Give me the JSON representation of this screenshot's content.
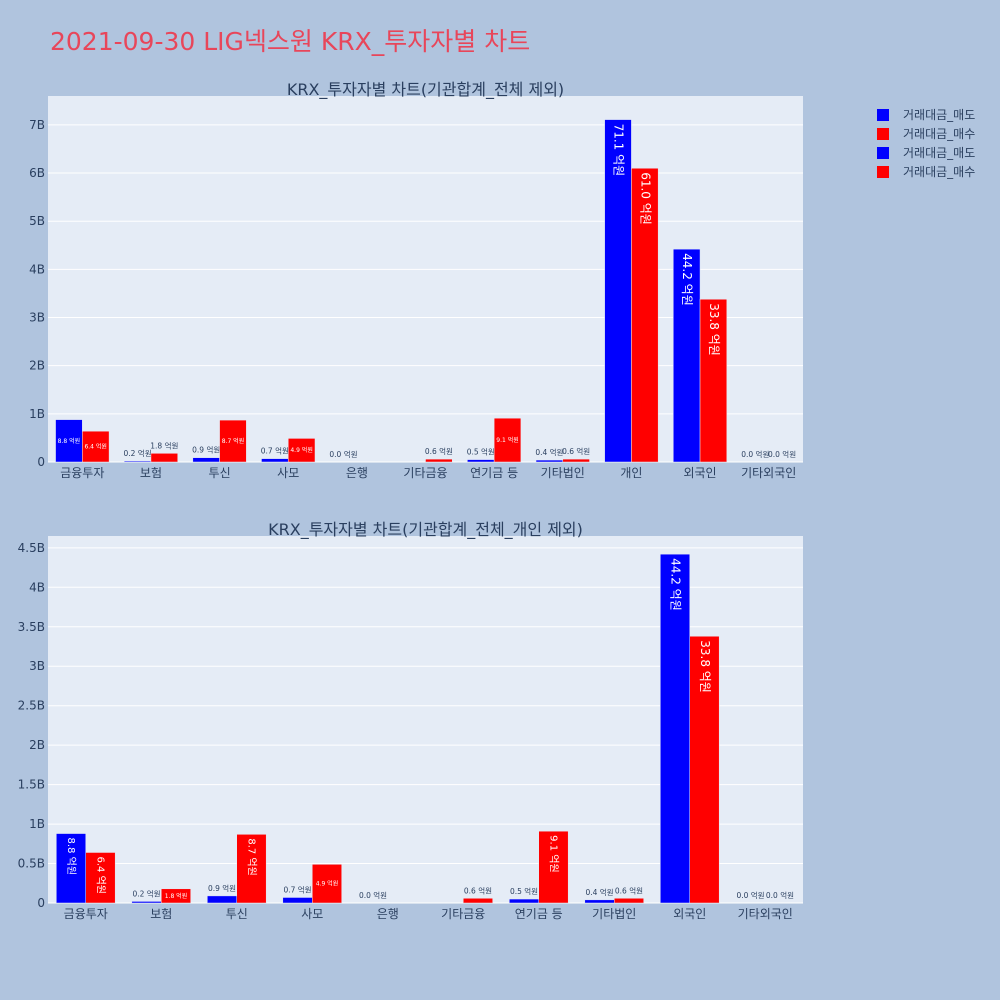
{
  "page": {
    "title": "2021-09-30 LIG넥스원 KRX_투자자별 차트"
  },
  "legend": [
    {
      "name": "거래대금_매도",
      "color": "#0000ff"
    },
    {
      "name": "거래대금_매수",
      "color": "#ff0000"
    },
    {
      "name": "거래대금_매도",
      "color": "#0000ff"
    },
    {
      "name": "거래대금_매수",
      "color": "#ff0000"
    }
  ],
  "chart_data": [
    {
      "type": "bar",
      "title": "KRX_투자자별 차트(기관합계_전체 제외)",
      "categories": [
        "금융투자",
        "보험",
        "투신",
        "사모",
        "은행",
        "기타금융",
        "연기금 등",
        "기타법인",
        "개인",
        "외국인",
        "기타외국인"
      ],
      "ylim": [
        0,
        7600000000
      ],
      "yticks": [
        0,
        1000000000,
        2000000000,
        3000000000,
        4000000000,
        5000000000,
        6000000000,
        7000000000
      ],
      "yticklabels": [
        "0",
        "1B",
        "2B",
        "3B",
        "4B",
        "5B",
        "6B",
        "7B"
      ],
      "grid": true,
      "series": [
        {
          "name": "거래대금_매도",
          "color": "#0000ff",
          "values": [
            880000000,
            20000000,
            90000000,
            70000000,
            0,
            0,
            50000000,
            40000000,
            7110000000,
            4420000000,
            0
          ],
          "labels": [
            "8.8 억원",
            "0.2 억원",
            "0.9 억원",
            "0.7 억원",
            "0.0 억원",
            "",
            "0.5 억원",
            "0.4 억원",
            "71.1 억원",
            "44.2 억원",
            "0.0 억원"
          ]
        },
        {
          "name": "거래대금_매수",
          "color": "#ff0000",
          "values": [
            640000000,
            180000000,
            870000000,
            490000000,
            0,
            60000000,
            910000000,
            60000000,
            6100000000,
            3380000000,
            0
          ],
          "labels": [
            "6.4 억원",
            "1.8 억원",
            "8.7 억원",
            "4.9 억원",
            "",
            "0.6 억원",
            "9.1 억원",
            "0.6 억원",
            "61.0 억원",
            "33.8 억원",
            "0.0 억원"
          ]
        }
      ]
    },
    {
      "type": "bar",
      "title": "KRX_투자자별 차트(기관합계_전체_개인 제외)",
      "categories": [
        "금융투자",
        "보험",
        "투신",
        "사모",
        "은행",
        "기타금융",
        "연기금 등",
        "기타법인",
        "외국인",
        "기타외국인"
      ],
      "ylim": [
        0,
        4650000000
      ],
      "yticks": [
        0,
        500000000,
        1000000000,
        1500000000,
        2000000000,
        2500000000,
        3000000000,
        3500000000,
        4000000000,
        4500000000
      ],
      "yticklabels": [
        "0",
        "0.5B",
        "1B",
        "1.5B",
        "2B",
        "2.5B",
        "3B",
        "3.5B",
        "4B",
        "4.5B"
      ],
      "grid": true,
      "series": [
        {
          "name": "거래대금_매도",
          "color": "#0000ff",
          "values": [
            880000000,
            20000000,
            90000000,
            70000000,
            0,
            0,
            50000000,
            40000000,
            4420000000,
            0
          ],
          "labels": [
            "8.8 억원",
            "0.2 억원",
            "0.9 억원",
            "0.7 억원",
            "0.0 억원",
            "",
            "0.5 억원",
            "0.4 억원",
            "44.2 억원",
            "0.0 억원"
          ]
        },
        {
          "name": "거래대금_매수",
          "color": "#ff0000",
          "values": [
            640000000,
            180000000,
            870000000,
            490000000,
            0,
            60000000,
            910000000,
            60000000,
            3380000000,
            0
          ],
          "labels": [
            "6.4 억원",
            "1.8 억원",
            "8.7 억원",
            "4.9 억원",
            "",
            "0.6 억원",
            "9.1 억원",
            "0.6 억원",
            "33.8 억원",
            "0.0 억원"
          ]
        }
      ]
    }
  ]
}
